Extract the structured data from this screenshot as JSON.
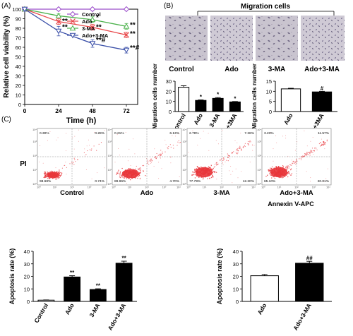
{
  "panels": {
    "a": "(A)",
    "b": "(B)",
    "c": "(C)"
  },
  "panel_b_header": "Migration cells",
  "micrograph_labels": [
    "Control",
    "Ado",
    "3-MA",
    "Ado+3-MA"
  ],
  "flow_quadrants": [
    {
      "ul": "0.30%",
      "ur": "0.28%",
      "ll": "98.68%",
      "lr": "0.74%"
    },
    {
      "ul": "0.21%",
      "ur": "6.13%",
      "ll": "89.96%",
      "lr": "4.70%"
    },
    {
      "ul": "2.79%",
      "ur": "7.26%",
      "ll": "77.79%",
      "lr": "12.20%"
    },
    {
      "ul": "3.23%",
      "ur": "11.57%",
      "ll": "65.10%",
      "lr": "20.01%"
    }
  ],
  "flow_labels": [
    "Control",
    "Ado",
    "3-MA",
    "Ado+3-MA"
  ],
  "flow_xaxis": "Annexin V-APC",
  "flow_yaxis": "PI",
  "flow_ticks": [
    "10⁰",
    "10¹",
    "10²",
    "10³",
    "10⁴"
  ],
  "colors": {
    "control": "#9b4dca",
    "ado": "#e8474a",
    "ma": "#4cb24c",
    "combo": "#3a4fa8",
    "dots": "#e8353a"
  },
  "chart_data": [
    {
      "type": "line",
      "xlabel": "Time (h)",
      "ylabel": "Relative cell viability (%)",
      "x": [
        0,
        24,
        48,
        72
      ],
      "xticks": [
        "0",
        "24",
        "48",
        "72"
      ],
      "yticks": [
        "0",
        "10",
        "20",
        "30",
        "40",
        "50",
        "60",
        "70",
        "80",
        "90",
        "100"
      ],
      "xlim": [
        0,
        80
      ],
      "ylim": [
        0,
        100
      ],
      "legend_position": "top-right",
      "series": [
        {
          "name": "Control",
          "values": [
            100,
            100,
            100,
            100
          ],
          "err": [
            1,
            1,
            1,
            1
          ],
          "marker": "diamond",
          "color": "#9b4dca"
        },
        {
          "name": "Ado",
          "values": [
            100,
            87,
            81,
            73
          ],
          "err": [
            2,
            3,
            3,
            3
          ],
          "marker": "x",
          "color": "#e8474a"
        },
        {
          "name": "3-MA",
          "values": [
            100,
            93,
            89,
            82
          ],
          "err": [
            2,
            2,
            3,
            3
          ],
          "marker": "triangle-up",
          "color": "#4cb24c"
        },
        {
          "name": "Ado+3-MA",
          "values": [
            100,
            77,
            64,
            57
          ],
          "err": [
            2,
            5,
            4,
            3
          ],
          "marker": "triangle-down",
          "color": "#3a4fa8"
        }
      ],
      "annotations": [
        {
          "x": 0,
          "y": 0,
          "text": ""
        },
        {
          "x": 24,
          "y": 88,
          "text": "**"
        },
        {
          "x": 24,
          "y": 82,
          "text": "**"
        },
        {
          "x": 48,
          "y": 92,
          "text": "*"
        },
        {
          "x": 48,
          "y": 82,
          "text": "**"
        },
        {
          "x": 48,
          "y": 68,
          "text": "**#"
        },
        {
          "x": 72,
          "y": 84,
          "text": "**"
        },
        {
          "x": 72,
          "y": 75,
          "text": "**"
        },
        {
          "x": 72,
          "y": 60,
          "text": "**#"
        }
      ]
    },
    {
      "type": "bar",
      "ylabel": "Migration cells number",
      "categories": [
        "Control",
        "Ado",
        "3-MA",
        "Ado+3MA"
      ],
      "values": [
        24,
        11,
        13,
        9.5
      ],
      "err": [
        1.5,
        0.5,
        0.8,
        0.4
      ],
      "fill": [
        "#ffffff",
        "#000000",
        "#000000",
        "#000000"
      ],
      "labels": [
        "",
        "*",
        "*",
        "*"
      ],
      "yticks": [
        "0",
        "10",
        "20",
        "30"
      ],
      "ylim": [
        0,
        30
      ]
    },
    {
      "type": "bar",
      "ylabel": "Migration cells number",
      "categories": [
        "Ado",
        "Ado+3MA"
      ],
      "values": [
        11.2,
        9.7
      ],
      "err": [
        0.3,
        0.3
      ],
      "fill": [
        "#ffffff",
        "#000000"
      ],
      "labels": [
        "",
        "#"
      ],
      "yticks": [
        "0",
        "5",
        "10",
        "15"
      ],
      "ylim": [
        0,
        15
      ]
    },
    {
      "type": "bar",
      "ylabel": "Apoptosis rate (%)",
      "categories": [
        "Control",
        "Ado",
        "3-MA",
        "Ado+3-MA"
      ],
      "values": [
        1.0,
        19.5,
        9.5,
        30.5
      ],
      "err": [
        0.2,
        1.0,
        0.6,
        1.6
      ],
      "fill": [
        "#ffffff",
        "#000000",
        "#000000",
        "#000000"
      ],
      "labels": [
        "",
        "**",
        "**",
        "**"
      ],
      "yticks": [
        "0",
        "10",
        "20",
        "30",
        "40"
      ],
      "ylim": [
        0,
        40
      ]
    },
    {
      "type": "bar",
      "ylabel": "Apoptosis rate (%)",
      "categories": [
        "Ado",
        "Ado+3-MA"
      ],
      "values": [
        20.5,
        30.5
      ],
      "err": [
        1.0,
        1.5
      ],
      "fill": [
        "#ffffff",
        "#000000"
      ],
      "labels": [
        "",
        "##"
      ],
      "yticks": [
        "0",
        "10",
        "20",
        "30",
        "40"
      ],
      "ylim": [
        0,
        40
      ]
    }
  ]
}
